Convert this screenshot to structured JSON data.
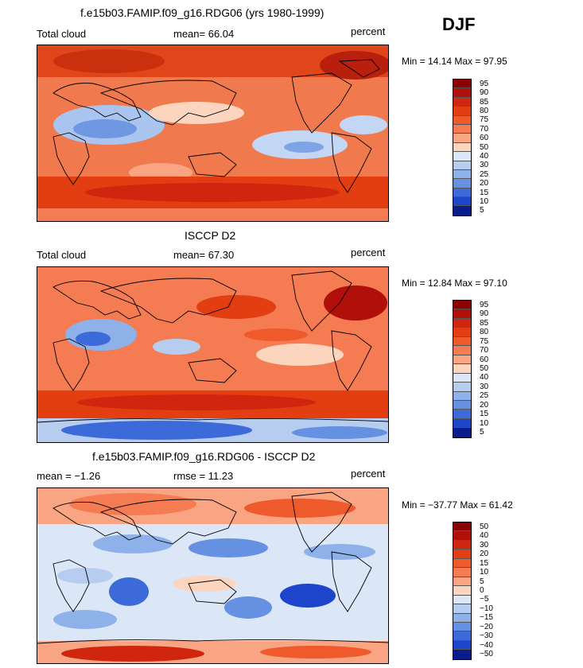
{
  "season": "DJF",
  "panels": [
    {
      "id": "model",
      "title": "f.e15b03.FAMIP.f09_g16.RDG06 (yrs 1980-1999)",
      "left_label": "Total cloud",
      "center_label": "mean=  66.04",
      "right_label": "percent",
      "minmax": "Min =  14.14 Max =  97.95",
      "colorbar_labels": [
        "95",
        "90",
        "85",
        "80",
        "75",
        "70",
        "60",
        "50",
        "40",
        "30",
        "25",
        "20",
        "15",
        "10",
        "5"
      ]
    },
    {
      "id": "obs",
      "title": "ISCCP D2",
      "left_label": "Total cloud",
      "center_label": "mean=  67.30",
      "right_label": "percent",
      "minmax": "Min =  12.84 Max =  97.10",
      "colorbar_labels": [
        "95",
        "90",
        "85",
        "80",
        "75",
        "70",
        "60",
        "50",
        "40",
        "30",
        "25",
        "20",
        "15",
        "10",
        "5"
      ]
    },
    {
      "id": "diff",
      "title": "f.e15b03.FAMIP.f09_g16.RDG06 - ISCCP D2",
      "left_label": "mean =  −1.26",
      "center_label": "rmse =  11.23",
      "right_label": "percent",
      "minmax": "Min = −37.77 Max =  61.42",
      "colorbar_labels": [
        "50",
        "40",
        "30",
        "20",
        "15",
        "10",
        "5",
        "0",
        "−5",
        "−10",
        "−15",
        "−20",
        "−30",
        "−40",
        "−50"
      ]
    }
  ],
  "colorbar_colors": [
    "#8b0000",
    "#b00f0a",
    "#d0260f",
    "#e33d12",
    "#ee5a2c",
    "#f47b52",
    "#f9a583",
    "#fcd5bf",
    "#dbe7f7",
    "#b6cdf0",
    "#8fb1ea",
    "#6690e1",
    "#3c6bd9",
    "#1d45cb",
    "#0a1b8c"
  ]
}
